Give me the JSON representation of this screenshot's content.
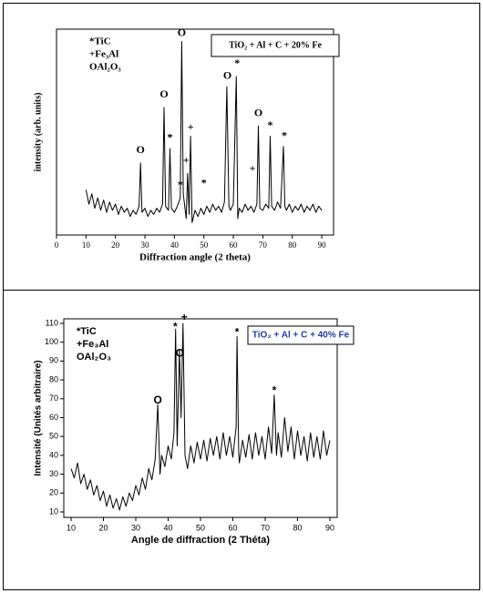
{
  "chart_data": [
    {
      "type": "line",
      "font": "serif",
      "xlabel": "Diffraction angle (2 theta)",
      "ylabel": "intensity (arb. units)",
      "legend_labels": [
        "*TiC",
        "+Fe₃Al",
        "OAl₂O₃"
      ],
      "box_label": "TiO₂ + Al + C + 20% Fe",
      "box_color": "#000000",
      "color": "#000000",
      "xlim": [
        0,
        94
      ],
      "ylim": [
        0,
        100
      ],
      "xticks": [
        0,
        10,
        20,
        30,
        40,
        50,
        60,
        70,
        80,
        90
      ],
      "x": [
        10,
        11,
        12,
        13,
        14,
        15,
        16,
        17,
        18,
        19,
        20,
        21,
        22,
        23,
        24,
        25,
        26,
        27,
        28,
        28.5,
        29,
        30,
        31,
        32,
        33,
        34,
        35,
        36,
        36.5,
        37,
        38,
        38.5,
        39,
        40,
        41,
        42,
        42.5,
        43,
        44,
        44.5,
        45,
        45.5,
        46,
        47,
        48,
        49,
        50,
        51,
        52,
        53,
        54,
        55,
        56,
        57,
        57.8,
        58.5,
        59,
        60,
        61,
        61.5,
        62,
        63,
        64,
        65,
        66,
        67,
        68,
        68.5,
        69,
        70,
        71,
        72,
        72.5,
        73,
        74,
        75,
        76,
        77,
        77.5,
        78,
        79,
        80,
        81,
        82,
        83,
        84,
        85,
        86,
        87,
        88,
        89,
        90
      ],
      "values": [
        22,
        15,
        20,
        13,
        18,
        12,
        17,
        11,
        16,
        12,
        15,
        10,
        14,
        11,
        13,
        9,
        12,
        10,
        14,
        35,
        11,
        13,
        9,
        12,
        10,
        13,
        11,
        15,
        62,
        14,
        12,
        42,
        13,
        11,
        14,
        18,
        94,
        20,
        8,
        30,
        10,
        48,
        6,
        12,
        9,
        13,
        10,
        14,
        11,
        15,
        12,
        14,
        11,
        16,
        72,
        14,
        12,
        15,
        77,
        8,
        13,
        11,
        15,
        12,
        14,
        11,
        15,
        53,
        13,
        12,
        15,
        13,
        48,
        14,
        12,
        16,
        13,
        43,
        14,
        12,
        15,
        11,
        14,
        12,
        15,
        11,
        14,
        12,
        15,
        11,
        14,
        12
      ],
      "annotations": [
        {
          "text": "O",
          "x": 28.5,
          "y": 41
        },
        {
          "text": "O",
          "x": 36.5,
          "y": 68
        },
        {
          "text": "*",
          "x": 38.5,
          "y": 47
        },
        {
          "text": "O",
          "x": 42.5,
          "y": 98
        },
        {
          "text": "*",
          "x": 42,
          "y": 24
        },
        {
          "text": "+",
          "x": 44,
          "y": 36
        },
        {
          "text": "+",
          "x": 45.5,
          "y": 52
        },
        {
          "text": "*",
          "x": 50,
          "y": 25
        },
        {
          "text": "O",
          "x": 58,
          "y": 77
        },
        {
          "text": "*",
          "x": 61.3,
          "y": 83
        },
        {
          "text": "+",
          "x": 66.5,
          "y": 32
        },
        {
          "text": "O",
          "x": 68.5,
          "y": 59
        },
        {
          "text": "*",
          "x": 72.5,
          "y": 53
        },
        {
          "text": "*",
          "x": 77.3,
          "y": 48
        }
      ]
    },
    {
      "type": "line",
      "font": "sans",
      "xlabel": "Angle de diffraction (2 Théta)",
      "ylabel": "Intensité (Unités arbitraire)",
      "legend_labels": [
        "*TiC",
        "+Fe₃Al",
        "OAl₂O₃"
      ],
      "box_label": "TiO₂ + Al + C + 40% Fe",
      "box_color": "#1f3f9f",
      "color": "#000000",
      "xlim": [
        7.75,
        92.25
      ],
      "ylim": [
        7.1,
        112.4
      ],
      "xticks": [
        10,
        20,
        30,
        40,
        50,
        60,
        70,
        80,
        90
      ],
      "yticks": [
        10,
        20,
        30,
        40,
        50,
        60,
        70,
        80,
        90,
        100,
        110
      ],
      "x": [
        10,
        11,
        12,
        13,
        14,
        15,
        16,
        17,
        18,
        19,
        20,
        21,
        22,
        23,
        24,
        25,
        26,
        27,
        28,
        29,
        30,
        31,
        32,
        33,
        34,
        35,
        36,
        36.8,
        37.5,
        38,
        39,
        40,
        41,
        41.8,
        42.3,
        42.8,
        43.5,
        44,
        44.6,
        45.2,
        46,
        47,
        48,
        49,
        50,
        51,
        52,
        53,
        54,
        55,
        56,
        57,
        58,
        59,
        60,
        61,
        61.3,
        61.8,
        62,
        63,
        64,
        65,
        66,
        67,
        68,
        69,
        70,
        71,
        72,
        72.8,
        73.5,
        74,
        75,
        76,
        77,
        78,
        79,
        80,
        81,
        82,
        83,
        84,
        85,
        86,
        87,
        88,
        89,
        90
      ],
      "values": [
        33,
        28,
        36,
        25,
        30,
        22,
        27,
        19,
        24,
        16,
        21,
        13,
        19,
        12,
        17,
        11,
        18,
        13,
        20,
        16,
        24,
        19,
        28,
        22,
        33,
        27,
        38,
        67,
        30,
        40,
        34,
        45,
        38,
        52,
        107,
        45,
        96,
        60,
        110,
        40,
        33,
        45,
        36,
        47,
        38,
        48,
        37,
        49,
        40,
        50,
        38,
        52,
        40,
        50,
        39,
        55,
        103,
        42,
        36,
        48,
        39,
        51,
        38,
        52,
        40,
        50,
        38,
        55,
        41,
        72,
        40,
        52,
        39,
        60,
        42,
        55,
        38,
        53,
        40,
        50,
        37,
        52,
        39,
        50,
        38,
        53,
        40,
        48
      ],
      "annotations": [
        {
          "text": "*",
          "x": 42.2,
          "y": 108
        },
        {
          "text": "+",
          "x": 45,
          "y": 113
        },
        {
          "text": "O",
          "x": 43.6,
          "y": 94
        },
        {
          "text": "O",
          "x": 36.8,
          "y": 69
        },
        {
          "text": "*",
          "x": 61.3,
          "y": 105
        },
        {
          "text": "*",
          "x": 72.8,
          "y": 74
        }
      ]
    }
  ]
}
